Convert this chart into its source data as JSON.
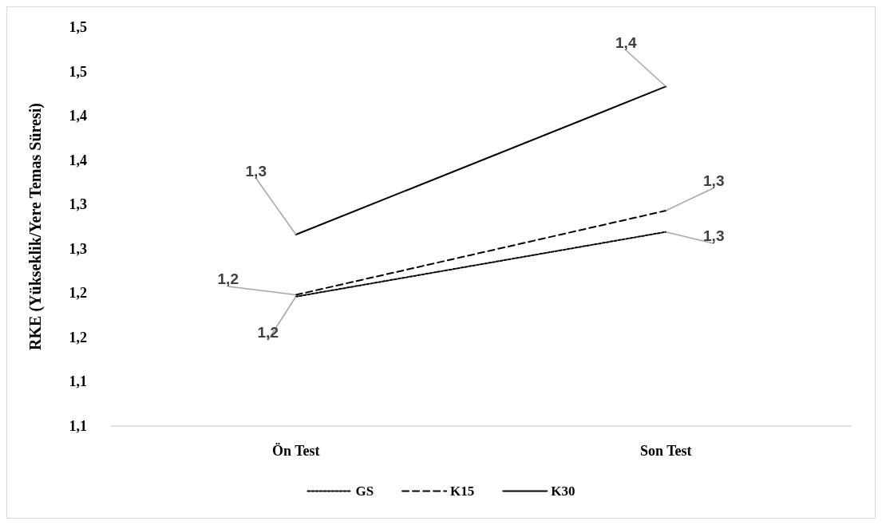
{
  "chart_data": {
    "type": "line",
    "ylabel": "RKE (Yükseklik/Yere Temas Süresi)",
    "categories": [
      "Ön Test",
      "Son Test"
    ],
    "series": [
      {
        "name": "GS",
        "color": "#000000",
        "line_style": "dotted",
        "values": [
          1.196,
          1.269
        ],
        "value_labels": [
          "1,2",
          "1,3"
        ]
      },
      {
        "name": "K15",
        "color": "#000000",
        "line_style": "dashed",
        "values": [
          1.198,
          1.293
        ],
        "value_labels": [
          "1,2",
          "1,3"
        ]
      },
      {
        "name": "K30",
        "color": "#000000",
        "line_style": "solid",
        "values": [
          1.266,
          1.433
        ],
        "value_labels": [
          "1,3",
          "1,4"
        ]
      }
    ],
    "ylim": [
      1.05,
      1.5
    ],
    "yticks": [
      {
        "value": 1.05,
        "label": "1,1"
      },
      {
        "value": 1.1,
        "label": "1,1"
      },
      {
        "value": 1.15,
        "label": "1,2"
      },
      {
        "value": 1.2,
        "label": "1,2"
      },
      {
        "value": 1.25,
        "label": "1,3"
      },
      {
        "value": 1.3,
        "label": "1,3"
      },
      {
        "value": 1.35,
        "label": "1,4"
      },
      {
        "value": 1.4,
        "label": "1,4"
      },
      {
        "value": 1.45,
        "label": "1,5"
      },
      {
        "value": 1.5,
        "label": "1,5"
      }
    ],
    "grid": false,
    "legend": "bottom",
    "marker": "none"
  }
}
